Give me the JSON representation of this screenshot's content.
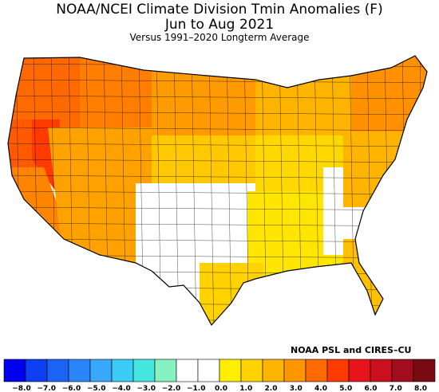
{
  "header": {
    "title": "NOAA/NCEI Climate Division Tmin Anomalies (F)",
    "period": "Jun to Aug 2021",
    "subtitle": "Versus 1991–2020 Longterm Average"
  },
  "credit": "NOAA PSL and CIRES–CU",
  "legend": {
    "labels": [
      "−8.0",
      "−7.0",
      "−6.0",
      "−5.0",
      "−4.0",
      "−3.0",
      "−2.0",
      "−1.0",
      "0.0",
      "1.0",
      "2.0",
      "3.0",
      "4.0",
      "5.0",
      "6.0",
      "7.0",
      "8.0"
    ],
    "colors": [
      "#0000ee",
      "#0d3ff0",
      "#1a63f5",
      "#2a86f8",
      "#38a8fa",
      "#3ccbf7",
      "#44e6e0",
      "#86f2c0",
      "#ffffff",
      "#ffffff",
      "#ffee00",
      "#ffd200",
      "#ffb400",
      "#ff9600",
      "#ff6a00",
      "#ff3a00",
      "#e8141c",
      "#c8101e",
      "#a20c1c",
      "#7a0a12"
    ]
  },
  "regions": [
    {
      "name": "pacific-northwest",
      "color": "#ff6a00"
    },
    {
      "name": "great-basin-west",
      "color": "#ff5a00"
    },
    {
      "name": "nevada-core",
      "color": "#ff3a00"
    },
    {
      "name": "california",
      "color": "#ff8400"
    },
    {
      "name": "northern-rockies",
      "color": "#ff7e00"
    },
    {
      "name": "northern-plains",
      "color": "#ff9a00"
    },
    {
      "name": "southwest",
      "color": "#ffa200"
    },
    {
      "name": "central-plains",
      "color": "#ffc800"
    },
    {
      "name": "southern-plains",
      "color": "#ffffff"
    },
    {
      "name": "midwest",
      "color": "#ffd800"
    },
    {
      "name": "great-lakes",
      "color": "#ffb400"
    },
    {
      "name": "southeast",
      "color": "#ffe600"
    },
    {
      "name": "gulf-coast",
      "color": "#ffd200"
    },
    {
      "name": "appalachia",
      "color": "#ffffff"
    },
    {
      "name": "mid-atlantic",
      "color": "#ffb400"
    },
    {
      "name": "northeast",
      "color": "#ff9000"
    },
    {
      "name": "florida",
      "color": "#ffc000"
    }
  ]
}
